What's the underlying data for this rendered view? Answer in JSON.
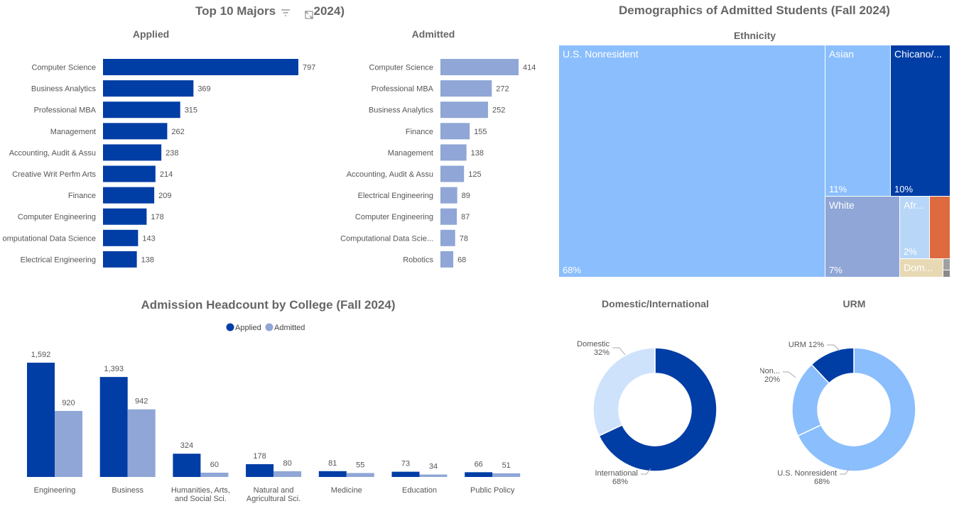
{
  "colors": {
    "dark": "#003DA5",
    "light": "#8FA6D6",
    "title": "#666666",
    "tm_light": "#8ABEFD",
    "tm_white": "#8FA6D6",
    "tm_afr": "#B7D6F8",
    "tm_orange": "#DD6B3F",
    "tm_dom": "#E8D9B5",
    "tm_gray": "#A0A0A0",
    "donut_dom": "#CFE2FC",
    "donut_urm_non": "#8ABEFD"
  },
  "majors": {
    "title": "Top 10 Majors (Fall 2024)",
    "title_visible_left": "Top 10 Majors",
    "title_visible_right": "2024)",
    "icons": {
      "filter": "filter-icon",
      "expand": "expand-icon"
    }
  },
  "dashboard": {
    "demographics_title": "Demographics of Admitted Students (Fall 2024)"
  },
  "chart_data": [
    {
      "type": "bar",
      "orientation": "horizontal",
      "title": "Applied",
      "categories": [
        "Computer Science",
        "Business Analytics",
        "Professional MBA",
        "Management",
        "Accounting, Audit & Assu",
        "Creative Writ Perfm Arts",
        "Finance",
        "Computer Engineering",
        "Computational Data Science",
        "Electrical Engineering"
      ],
      "display_labels": [
        "Computer Science",
        "Business Analytics",
        "Professional MBA",
        "Management",
        "Accounting, Audit & Assu",
        "Creative Writ Perfm Arts",
        "Finance",
        "Computer Engineering",
        "omputational Data Science",
        "Electrical Engineering"
      ],
      "values": [
        797,
        369,
        315,
        262,
        238,
        214,
        209,
        178,
        143,
        138
      ],
      "value_labels": [
        "797",
        "369",
        "315",
        "262",
        "238",
        "214",
        "209",
        "178",
        "143",
        "138"
      ],
      "color": "#003DA5"
    },
    {
      "type": "bar",
      "orientation": "horizontal",
      "title": "Admitted",
      "categories": [
        "Computer Science",
        "Professional MBA",
        "Business Analytics",
        "Finance",
        "Management",
        "Accounting, Audit & Assu",
        "Electrical Engineering",
        "Computer Engineering",
        "Computational Data Scie...",
        "Robotics"
      ],
      "values": [
        414,
        272,
        252,
        155,
        138,
        125,
        89,
        87,
        78,
        68
      ],
      "value_labels": [
        "414",
        "272",
        "252",
        "155",
        "138",
        "125",
        "89",
        "87",
        "78",
        "68"
      ],
      "color": "#8FA6D6"
    },
    {
      "type": "bar",
      "title": "Admission Headcount by College (Fall 2024)",
      "legend_position": "top",
      "categories": [
        "Engineering",
        "Business",
        "Humanities, Arts, and Social Sci.",
        "Natural and Agricultural Sci.",
        "Medicine",
        "Education",
        "Public Policy"
      ],
      "category_lines": [
        [
          "Engineering"
        ],
        [
          "Business"
        ],
        [
          "Humanities, Arts,",
          "and Social Sci."
        ],
        [
          "Natural and",
          "Agricultural Sci."
        ],
        [
          "Medicine"
        ],
        [
          "Education"
        ],
        [
          "Public Policy"
        ]
      ],
      "series": [
        {
          "name": "Applied",
          "values": [
            1592,
            1393,
            324,
            178,
            81,
            73,
            66
          ],
          "value_labels": [
            "1,592",
            "1,393",
            "324",
            "178",
            "81",
            "73",
            "66"
          ],
          "color": "#003DA5"
        },
        {
          "name": "Admitted",
          "values": [
            920,
            942,
            60,
            80,
            55,
            34,
            51
          ],
          "value_labels": [
            "920",
            "942",
            "60",
            "80",
            "55",
            "34",
            "51"
          ],
          "color": "#8FA6D6"
        }
      ]
    },
    {
      "type": "treemap",
      "title": "Ethnicity",
      "items": [
        {
          "name": "U.S. Nonresident",
          "label": "U.S. Nonresident",
          "pct": "68%",
          "value": 68,
          "color": "#8ABEFD"
        },
        {
          "name": "Asian",
          "label": "Asian",
          "pct": "11%",
          "value": 11,
          "color": "#8ABEFD"
        },
        {
          "name": "Chicano/...",
          "label": "Chicano/...",
          "pct": "10%",
          "value": 10,
          "color": "#003DA5"
        },
        {
          "name": "White",
          "label": "White",
          "pct": "7%",
          "value": 7,
          "color": "#8FA6D6"
        },
        {
          "name": "Afr...",
          "label": "Afr...",
          "pct": "2%",
          "value": 2,
          "color": "#B7D6F8"
        },
        {
          "name": "orange",
          "label": "",
          "pct": "",
          "value": 1,
          "color": "#DD6B3F"
        },
        {
          "name": "Dom...",
          "label": "Dom...",
          "pct": "",
          "value": 1,
          "color": "#E8D9B5"
        },
        {
          "name": "gray-a",
          "label": "",
          "pct": "",
          "value": 0.2,
          "color": "#A0A0A0"
        },
        {
          "name": "gray-b",
          "label": "",
          "pct": "",
          "value": 0.1,
          "color": "#8A8A8A"
        }
      ]
    },
    {
      "type": "pie",
      "title": "Domestic/International",
      "donut": true,
      "slices": [
        {
          "name": "International",
          "pct_label": "68%",
          "value": 68,
          "color": "#003DA5"
        },
        {
          "name": "Domestic",
          "pct_label": "32%",
          "value": 32,
          "color": "#CFE2FC"
        }
      ]
    },
    {
      "type": "pie",
      "title": "URM",
      "donut": true,
      "slices": [
        {
          "name": "U.S. Nonresident",
          "pct_label": "68%",
          "value": 68,
          "color": "#8ABEFD"
        },
        {
          "name": "Non...",
          "pct_label": "20%",
          "value": 20,
          "color": "#8ABEFD"
        },
        {
          "name": "URM",
          "pct_label": "12%",
          "value": 12,
          "color": "#003DA5"
        }
      ]
    }
  ]
}
